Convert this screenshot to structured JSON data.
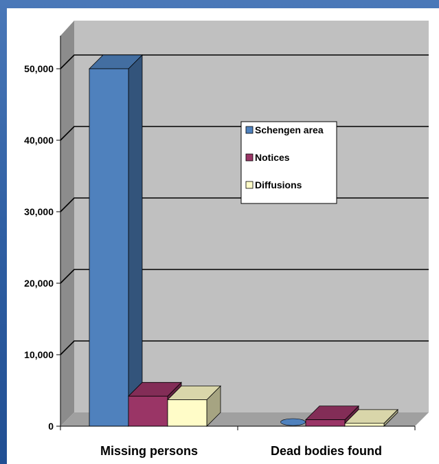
{
  "chart_data": {
    "type": "bar",
    "categories": [
      "Missing persons",
      "Dead bodies found"
    ],
    "series": [
      {
        "name": "Schengen area",
        "values": [
          50000,
          0
        ],
        "color": "#4f81bd"
      },
      {
        "name": "Notices",
        "values": [
          4200,
          900
        ],
        "color": "#9a3566"
      },
      {
        "name": "Diffusions",
        "values": [
          3700,
          400
        ],
        "color": "#fffcc8"
      }
    ],
    "y_ticks": [
      "0",
      "10,000",
      "20,000",
      "30,000",
      "40,000",
      "50,000"
    ],
    "ylim": [
      0,
      50000
    ],
    "grid": true,
    "legend": "center",
    "three_d": true,
    "wall_color": "#c0c0c0",
    "floor_color": "#a0a0a0"
  }
}
